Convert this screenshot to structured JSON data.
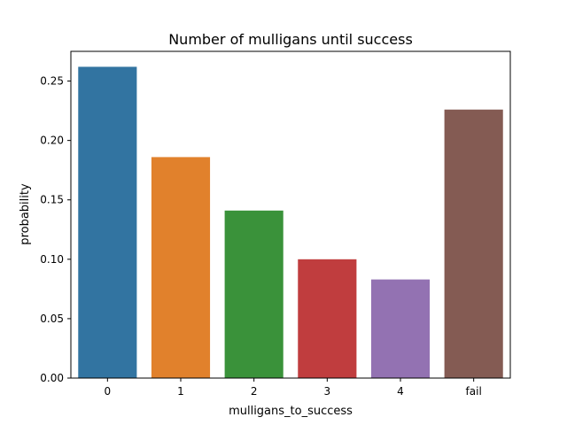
{
  "chart_data": {
    "type": "bar",
    "title": "Number of mulligans until success",
    "xlabel": "mulligans_to_success",
    "ylabel": "probability",
    "categories": [
      "0",
      "1",
      "2",
      "3",
      "4",
      "fail"
    ],
    "values": [
      0.262,
      0.186,
      0.141,
      0.1,
      0.083,
      0.226
    ],
    "colors": [
      "#3274a1",
      "#e1812c",
      "#3a923a",
      "#c03d3e",
      "#9372b2",
      "#845b53"
    ],
    "ylim": [
      0,
      0.275
    ],
    "yticks": [
      0.0,
      0.05,
      0.1,
      0.15,
      0.2,
      0.25
    ],
    "ytick_labels": [
      "0.00",
      "0.05",
      "0.10",
      "0.15",
      "0.20",
      "0.25"
    ],
    "grid": false,
    "legend": "none"
  }
}
